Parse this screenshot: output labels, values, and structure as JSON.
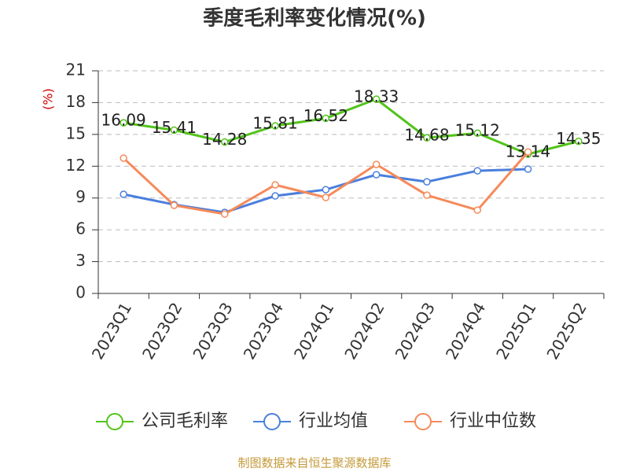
{
  "chart_data": {
    "type": "line",
    "title": "季度毛利率变化情况(%)",
    "y_label": "(%)",
    "source": "制图数据来自恒生聚源数据库",
    "categories": [
      "2023Q1",
      "2023Q2",
      "2023Q3",
      "2023Q4",
      "2024Q1",
      "2024Q2",
      "2024Q3",
      "2024Q4",
      "2025Q1",
      "2025Q2"
    ],
    "series": [
      {
        "name": "公司毛利率",
        "color": "#52c41a",
        "values": [
          16.09,
          15.41,
          14.28,
          15.81,
          16.52,
          18.33,
          14.68,
          15.12,
          13.14,
          14.35
        ],
        "show_labels": true
      },
      {
        "name": "行业均值",
        "color": "#4a7fdc",
        "values": [
          9.35,
          8.38,
          7.64,
          9.2,
          9.79,
          11.2,
          10.53,
          11.57,
          11.72,
          null
        ]
      },
      {
        "name": "行业中位数",
        "color": "#f58a5a",
        "values": [
          12.76,
          8.31,
          7.49,
          10.24,
          9.05,
          12.17,
          9.27,
          7.86,
          13.35,
          null
        ]
      }
    ],
    "ylim": [
      0,
      21
    ],
    "yticks": [
      0,
      3,
      6,
      9,
      12,
      15,
      18,
      21
    ],
    "grid": true
  }
}
